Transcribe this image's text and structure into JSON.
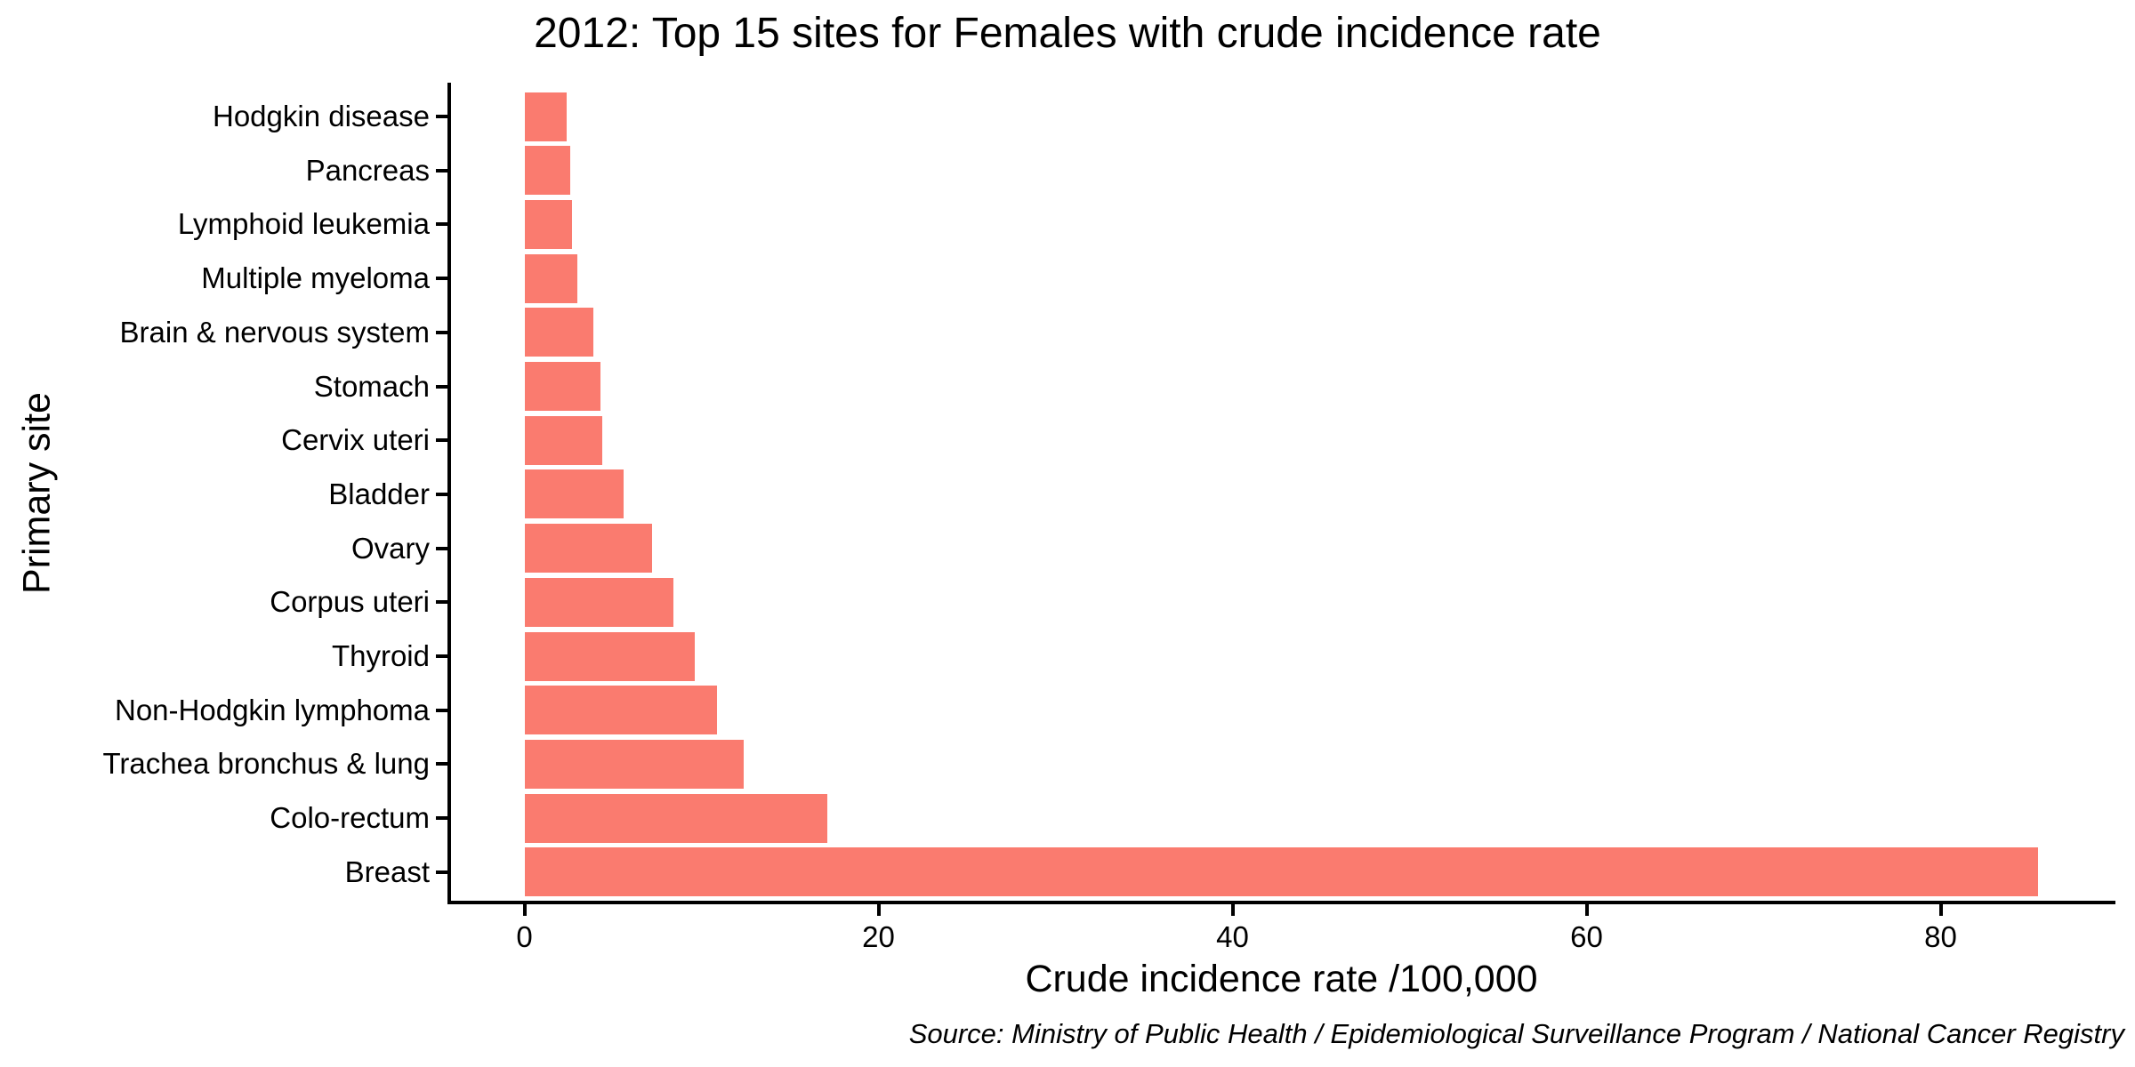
{
  "chart_data": {
    "type": "bar",
    "orientation": "horizontal",
    "title": "2012: Top 15 sites for Females with crude incidence rate",
    "xlabel": "Crude incidence rate /100,000",
    "ylabel": "Primary site",
    "categories": [
      "Hodgkin disease",
      "Pancreas",
      "Lymphoid leukemia",
      "Multiple myeloma",
      "Brain & nervous system",
      "Stomach",
      "Cervix uteri",
      "Bladder",
      "Ovary",
      "Corpus uteri",
      "Thyroid",
      "Non-Hodgkin lymphoma",
      "Trachea bronchus & lung",
      "Colo-rectum",
      "Breast"
    ],
    "values": [
      2.4,
      2.6,
      2.7,
      3.0,
      3.9,
      4.3,
      4.4,
      5.6,
      7.2,
      8.4,
      9.6,
      10.9,
      12.4,
      17.1,
      85.5
    ],
    "xticks": [
      0,
      20,
      40,
      60,
      80
    ],
    "xlim": [
      -4.4,
      89.9
    ],
    "grid": false,
    "legend_position": "none",
    "bar_color": "#FA7B6F",
    "axis_color": "#000000",
    "text_color": "#000000",
    "source": "Source: Ministry of Public Health / Epidemiological Surveillance Program / National Cancer Registry"
  }
}
